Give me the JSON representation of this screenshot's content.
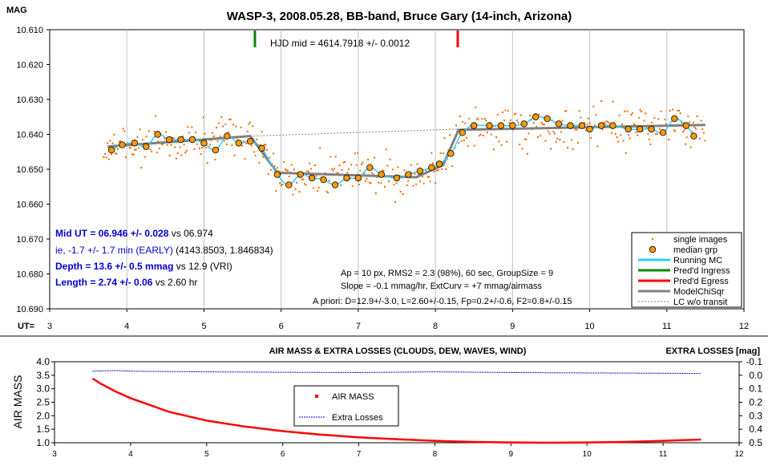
{
  "chart_data": [
    {
      "type": "scatter",
      "title": "WASP-3, 2008.05.28, BB-band, Bruce Gary (14-inch, Arizona)",
      "ylabel": "MAG",
      "xlabel": "UT=",
      "xlim": [
        3,
        12
      ],
      "ylim": [
        10.69,
        10.61
      ],
      "y_inverted": true,
      "x_ticks": [
        "3",
        "4",
        "5",
        "6",
        "7",
        "8",
        "9",
        "10",
        "11",
        "12"
      ],
      "y_ticks": [
        "10.610",
        "10.620",
        "10.630",
        "10.640",
        "10.650",
        "10.660",
        "10.670",
        "10.680",
        "10.690"
      ],
      "x_tick_values": [
        3,
        4,
        5,
        6,
        7,
        8,
        9,
        10,
        11,
        12
      ],
      "y_tick_values": [
        10.61,
        10.62,
        10.63,
        10.64,
        10.65,
        10.66,
        10.67,
        10.68,
        10.69
      ],
      "grid": "x-major",
      "hjd_label": "HJD mid = 4614.7918 +/- 0.0012",
      "predicted_ingress_ut": 5.66,
      "predicted_egress_ut": 8.29,
      "info_lines": [
        "Ap = 10 px, RMS2 = 2.3 (98%), 60 sec, GroupSize = 9",
        "Slope = -0.1 mmag/hr, ExtCurv = +7 mmag/airmass",
        "A priori: D=12.9+/-3.0, L=2.60+/-0.15, Fp=0.2+/-0.6, F2=0.8+/-0.15"
      ],
      "result_lines": [
        {
          "bold": "Mid UT = 06.946 +/- 0.028",
          "normal": " vs 06.974",
          "color": "#0000cc"
        },
        {
          "bold": "",
          "normal": "ie, -1.7 +/- 1.7 min (EARLY)",
          "extra": " (4143.8503, 1.846834)",
          "color": "#0000cc"
        },
        {
          "bold": "Depth = 13.6 +/- 0.5 mmag",
          "normal": " vs 12.9 (VRI)",
          "color": "#0000cc"
        },
        {
          "bold": "Length = 2.74 +/- 0.06",
          "normal": "  vs 2.60 hr",
          "color": "#0000cc"
        }
      ],
      "legend_position": "bottom-right",
      "legend": [
        {
          "label": "single images",
          "color": "#ff6600",
          "style": "dots"
        },
        {
          "label": "median grp",
          "color": "#ff9900",
          "style": "circle"
        },
        {
          "label": "Running MC",
          "color": "#33ccff",
          "style": "line"
        },
        {
          "label": "Pred'd Ingress",
          "color": "#008800",
          "style": "line"
        },
        {
          "label": "Pred'd Egress",
          "color": "#ff0000",
          "style": "line"
        },
        {
          "label": "ModelChiSqr",
          "color": "#808080",
          "style": "line"
        },
        {
          "label": "LC w/o transit",
          "color": "#808080",
          "style": "dash"
        }
      ],
      "series": [
        {
          "name": "median grp",
          "x": [
            3.8,
            3.94,
            4.1,
            4.25,
            4.4,
            4.55,
            4.7,
            4.85,
            5.0,
            5.15,
            5.3,
            5.45,
            5.6,
            5.75,
            5.95,
            6.1,
            6.25,
            6.4,
            6.55,
            6.7,
            6.85,
            7.0,
            7.15,
            7.3,
            7.5,
            7.65,
            7.8,
            7.95,
            8.05,
            8.2,
            8.35,
            8.5,
            8.7,
            8.85,
            9.0,
            9.15,
            9.3,
            9.45,
            9.6,
            9.75,
            9.9,
            10.0,
            10.15,
            10.3,
            10.5,
            10.65,
            10.8,
            10.95,
            11.1,
            11.25,
            11.35
          ],
          "y": [
            10.6445,
            10.643,
            10.6425,
            10.6435,
            10.64,
            10.6415,
            10.6415,
            10.6415,
            10.6425,
            10.6445,
            10.6405,
            10.6425,
            10.642,
            10.644,
            10.6515,
            10.6545,
            10.6515,
            10.6525,
            10.653,
            10.6545,
            10.6525,
            10.6525,
            10.6495,
            10.6515,
            10.6525,
            10.6515,
            10.6505,
            10.6495,
            10.6485,
            10.6455,
            10.6395,
            10.6375,
            10.6375,
            10.6375,
            10.6375,
            10.637,
            10.635,
            10.6355,
            10.637,
            10.6375,
            10.6375,
            10.6385,
            10.6375,
            10.6375,
            10.6385,
            10.6385,
            10.6385,
            10.6395,
            10.6355,
            10.6375,
            10.6405
          ]
        },
        {
          "name": "ModelChiSqr",
          "x": [
            3.75,
            5.6,
            5.95,
            7.75,
            8.1,
            8.3,
            11.5
          ],
          "y": [
            10.6435,
            10.6405,
            10.651,
            10.6523,
            10.6488,
            10.6387,
            10.6373
          ]
        },
        {
          "name": "LC w/o transit",
          "x": [
            5.6,
            8.3
          ],
          "y": [
            10.6405,
            10.6385
          ]
        },
        {
          "name": "single images",
          "x_range": [
            3.7,
            11.5
          ],
          "scatter_rms_mag": 0.003
        }
      ]
    },
    {
      "type": "line",
      "title": "AIR MASS & EXTRA LOSSES (CLOUDS, DEW, WAVES, WIND)",
      "ylabel": "AIR MASS",
      "y2label": "EXTRA LOSSES [mag]",
      "xlim": [
        3,
        12
      ],
      "ylim": [
        1.0,
        4.0
      ],
      "y2lim": [
        0.5,
        -0.1
      ],
      "x_ticks": [
        "3",
        "4",
        "5",
        "6",
        "7",
        "8",
        "9",
        "10",
        "11",
        "12"
      ],
      "y_ticks": [
        "1.0",
        "1.5",
        "2.0",
        "2.5",
        "3.0",
        "3.5",
        "4.0"
      ],
      "y2_ticks": [
        "0.5",
        "0.4",
        "0.3",
        "0.2",
        "0.1",
        "0.0",
        "-0.1"
      ],
      "legend": [
        {
          "label": "AIR MASS",
          "color": "#ff0000"
        },
        {
          "label": "Extra Losses",
          "color": "#0000cc"
        }
      ],
      "legend_position": "center",
      "series": [
        {
          "name": "AIR MASS",
          "x": [
            3.5,
            3.6,
            3.8,
            4.0,
            4.5,
            5.0,
            5.5,
            6.0,
            6.5,
            7.0,
            7.5,
            8.0,
            8.5,
            9.0,
            9.5,
            10.0,
            10.5,
            11.0,
            11.5
          ],
          "y": [
            3.38,
            3.2,
            2.9,
            2.65,
            2.15,
            1.82,
            1.6,
            1.43,
            1.3,
            1.2,
            1.13,
            1.07,
            1.03,
            1.01,
            1.0,
            1.01,
            1.03,
            1.07,
            1.12
          ]
        },
        {
          "name": "Extra Losses",
          "x": [
            3.5,
            3.8,
            4.0,
            5.0,
            6.0,
            7.0,
            8.0,
            9.0,
            10.0,
            11.0,
            11.5
          ],
          "y": [
            -0.03,
            -0.035,
            -0.03,
            -0.025,
            -0.022,
            -0.02,
            -0.025,
            -0.02,
            -0.017,
            -0.015,
            -0.013
          ]
        }
      ]
    }
  ]
}
